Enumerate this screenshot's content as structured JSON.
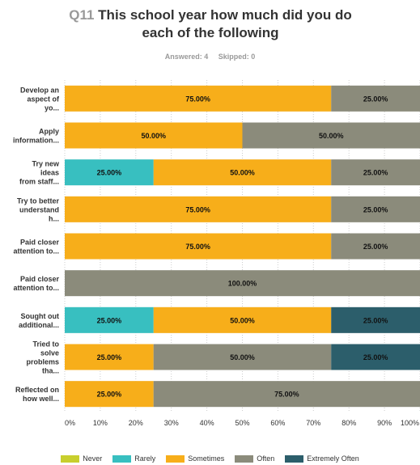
{
  "header": {
    "qnum": "Q11",
    "title_line1": "This school year how much did you do",
    "title_line2": "each of the following"
  },
  "stats": {
    "answered": "Answered: 4",
    "skipped": "Skipped: 0"
  },
  "colors": {
    "Never": "#c8cf2d",
    "Rarely": "#38bfc0",
    "Sometimes": "#f7ae1a",
    "Often": "#8b8b7b",
    "Extremely Often": "#2c5e6b",
    "band": "#ebebeb",
    "grid": "#cccccc"
  },
  "chart_data": {
    "type": "bar",
    "orientation": "horizontal",
    "stacked": true,
    "xlim": [
      0,
      100
    ],
    "x_ticks": [
      "0%",
      "10%",
      "20%",
      "30%",
      "40%",
      "50%",
      "60%",
      "70%",
      "80%",
      "90%",
      "100%"
    ],
    "categories": [
      [
        "Develop an",
        "aspect of",
        "yo..."
      ],
      [
        "Apply",
        "information..."
      ],
      [
        "Try new",
        "ideas",
        "from staff..."
      ],
      [
        "Try to better",
        "understand",
        "h..."
      ],
      [
        "Paid closer",
        "attention to..."
      ],
      [
        "Paid closer",
        "attention to..."
      ],
      [
        "Sought out",
        "additional..."
      ],
      [
        "Tried to",
        "solve",
        "problems",
        "tha..."
      ],
      [
        "Reflected on",
        "how well..."
      ]
    ],
    "series": [
      {
        "name": "Never",
        "values": [
          0,
          0,
          0,
          0,
          0,
          0,
          0,
          0,
          0
        ]
      },
      {
        "name": "Rarely",
        "values": [
          0,
          0,
          25,
          0,
          0,
          0,
          25,
          0,
          0
        ]
      },
      {
        "name": "Sometimes",
        "values": [
          75,
          50,
          50,
          75,
          75,
          0,
          50,
          25,
          25
        ]
      },
      {
        "name": "Often",
        "values": [
          25,
          50,
          25,
          25,
          25,
          100,
          0,
          50,
          75
        ]
      },
      {
        "name": "Extremely Often",
        "values": [
          0,
          0,
          0,
          0,
          0,
          0,
          25,
          25,
          0
        ]
      }
    ],
    "legend_position": "bottom",
    "grid": true
  }
}
